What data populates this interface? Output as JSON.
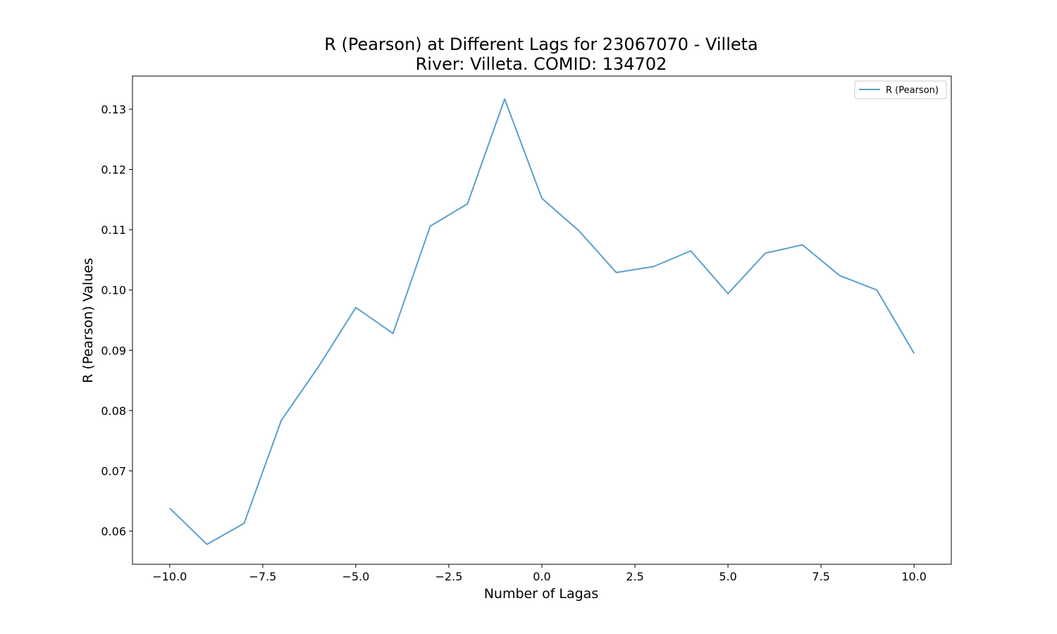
{
  "chart_data": {
    "type": "line",
    "title": "R (Pearson) at Different Lags for 23067070 - Villeta",
    "subtitle": "River: Villeta. COMID: 134702",
    "xlabel": "Number of Lagas",
    "ylabel": "R (Pearson) Values",
    "xlim": [
      -11,
      11
    ],
    "ylim": [
      0.0545,
      0.1355
    ],
    "x_ticks": [
      -10.0,
      -7.5,
      -5.0,
      -2.5,
      0.0,
      2.5,
      5.0,
      7.5,
      10.0
    ],
    "x_tick_labels": [
      "−10.0",
      "−7.5",
      "−5.0",
      "−2.5",
      "0.0",
      "2.5",
      "5.0",
      "7.5",
      "10.0"
    ],
    "y_ticks": [
      0.06,
      0.07,
      0.08,
      0.09,
      0.1,
      0.11,
      0.12,
      0.13
    ],
    "y_tick_labels": [
      "0.06",
      "0.07",
      "0.08",
      "0.09",
      "0.10",
      "0.11",
      "0.12",
      "0.13"
    ],
    "grid": false,
    "legend_position": "top-right",
    "series": [
      {
        "name": "R (Pearson)",
        "color": "#5b9fcb",
        "x": [
          -10,
          -9,
          -8,
          -7,
          -6,
          -5,
          -4,
          -3,
          -2,
          -1,
          0,
          1,
          2,
          3,
          4,
          5,
          6,
          7,
          8,
          9,
          10
        ],
        "y": [
          0.0638,
          0.0578,
          0.0613,
          0.0784,
          0.0873,
          0.0971,
          0.0928,
          0.1106,
          0.1143,
          0.1317,
          0.1152,
          0.1098,
          0.1029,
          0.1039,
          0.1065,
          0.0994,
          0.1061,
          0.1075,
          0.1024,
          0.1,
          0.0895
        ]
      }
    ]
  }
}
